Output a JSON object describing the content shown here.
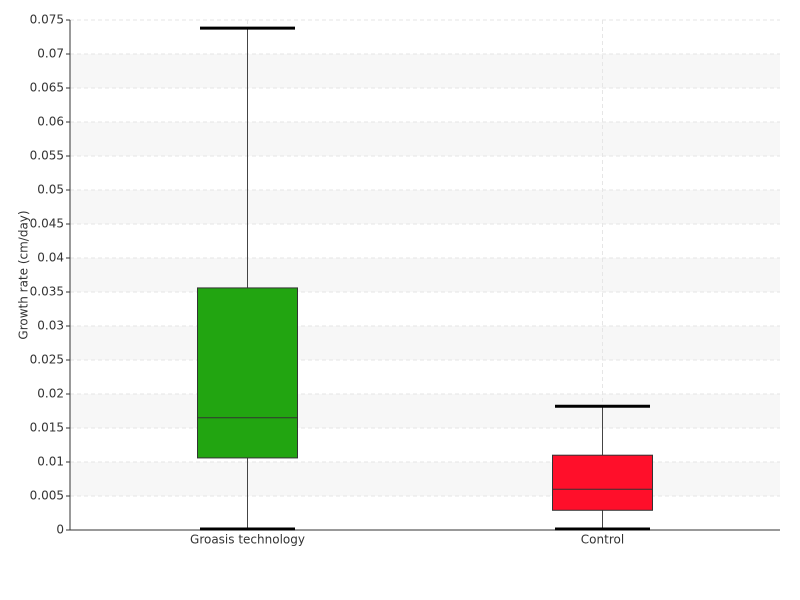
{
  "chart_data": {
    "type": "box",
    "y_label": "Growth rate (cm/day)",
    "categories": [
      "Groasis technology",
      "Control"
    ],
    "boxes": [
      {
        "min": 0,
        "q1": 0.0106,
        "median": 0.0165,
        "q3": 0.0356,
        "max": 0.0738,
        "color": "#22a511"
      },
      {
        "min": 0,
        "q1": 0.0029,
        "median": 0.006,
        "q3": 0.011,
        "max": 0.0182,
        "color": "#ff0f2a"
      }
    ],
    "ylim": [
      0,
      0.075
    ],
    "yticks": [
      0,
      0.005,
      0.01,
      0.015,
      0.02,
      0.025,
      0.03,
      0.035,
      0.04,
      0.045,
      0.05,
      0.055,
      0.06,
      0.065,
      0.07,
      0.075
    ],
    "grid": true
  }
}
